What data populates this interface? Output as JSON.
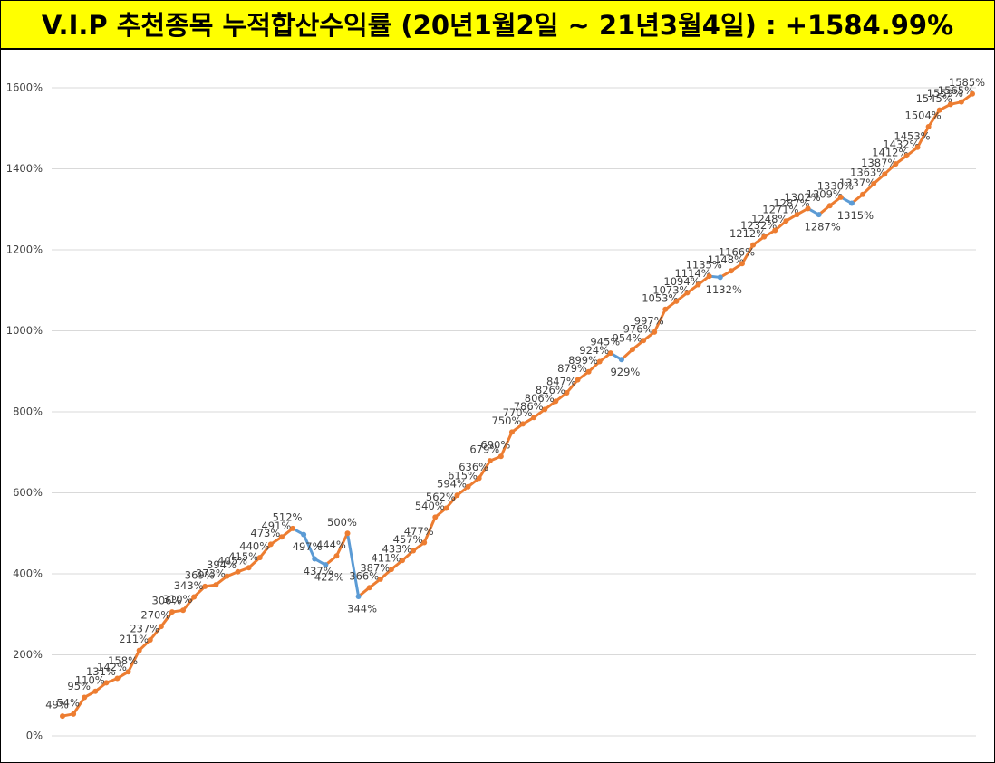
{
  "chart_data": {
    "type": "line",
    "title": "V.I.P 추천종목 누적합산수익률 (20년1월2일 ~ 21년3월4일) : +1584.99%",
    "categories": [
      null,
      null,
      null,
      null,
      null,
      null,
      null,
      null,
      null,
      null,
      null,
      null,
      null,
      null,
      null,
      null,
      null,
      null,
      null,
      null,
      null,
      null,
      null,
      null,
      null,
      null,
      null,
      null,
      null,
      null,
      null,
      null,
      null,
      null,
      null,
      null,
      null,
      null,
      null,
      null,
      null,
      null,
      null,
      null,
      null,
      null,
      null,
      null,
      null,
      null,
      null,
      null,
      null,
      null,
      null,
      null,
      null,
      null,
      null,
      null,
      null,
      null,
      null,
      null,
      null,
      null,
      null,
      null,
      null,
      null,
      null,
      null,
      null,
      null,
      null,
      null,
      null,
      null,
      null,
      null,
      null,
      null,
      null,
      null
    ],
    "series": [
      {
        "name": null,
        "color": "#ed7d31",
        "down_color": "#5b9bd5",
        "values": [
          49,
          54,
          95,
          110,
          131,
          142,
          158,
          211,
          237,
          270,
          306,
          310,
          343,
          369,
          373,
          394,
          405,
          415,
          440,
          473,
          491,
          512,
          497,
          437,
          422,
          444,
          500,
          344,
          366,
          387,
          411,
          433,
          457,
          477,
          540,
          562,
          594,
          615,
          636,
          679,
          690,
          750,
          770,
          786,
          806,
          826,
          847,
          879,
          899,
          924,
          945,
          929,
          954,
          976,
          997,
          1053,
          1073,
          1094,
          1114,
          1135,
          1132,
          1148,
          1166,
          1212,
          1232,
          1248,
          1271,
          1287,
          1302,
          1287,
          1309,
          1330,
          1315,
          1337,
          1363,
          1387,
          1412,
          1432,
          1453,
          1504,
          1545,
          1559,
          1565,
          1585
        ],
        "value_labels": [
          "49%",
          "54%",
          "95%",
          "110%",
          "131%",
          "142%",
          "158%",
          "211%",
          "237%",
          "270%",
          "306%",
          "310%",
          "343%",
          "369%",
          "373%",
          "394%",
          "405%",
          "415%",
          "440%",
          "473%",
          "491%",
          "512%",
          "497%",
          "437%",
          "422%",
          "444%",
          "500%",
          "344%",
          "366%",
          "387%",
          "411%",
          "433%",
          "457%",
          "477%",
          "540%",
          "562%",
          "594%",
          "615%",
          "636%",
          "679%",
          "690%",
          "750%",
          "770%",
          "786%",
          "806%",
          "826%",
          "847%",
          "879%",
          "899%",
          "924%",
          "945%",
          "929%",
          "954%",
          "976%",
          "997%",
          "1053%",
          "1073%",
          "1094%",
          "1114%",
          "1135%",
          "1132%",
          "1148%",
          "1166%",
          "1212%",
          "1232%",
          "1248%",
          "1271%",
          "1287%",
          "1302%",
          "1287%",
          "1309%",
          "1330%",
          "1315%",
          "1337%",
          "1363%",
          "1387%",
          "1412%",
          "1432%",
          "1453%",
          "1504%",
          "1545%",
          "1559%",
          "1565%",
          "1585%"
        ]
      }
    ],
    "ylim": [
      0,
      1600
    ],
    "yticks": [
      {
        "value": 0,
        "label": "0%"
      },
      {
        "value": 200,
        "label": "200%"
      },
      {
        "value": 400,
        "label": "400%"
      },
      {
        "value": 600,
        "label": "600%"
      },
      {
        "value": 800,
        "label": "800%"
      },
      {
        "value": 1000,
        "label": "1000%"
      },
      {
        "value": 1200,
        "label": "1200%"
      },
      {
        "value": 1400,
        "label": "1400%"
      },
      {
        "value": 1600,
        "label": "1600%"
      }
    ],
    "grid": true
  }
}
